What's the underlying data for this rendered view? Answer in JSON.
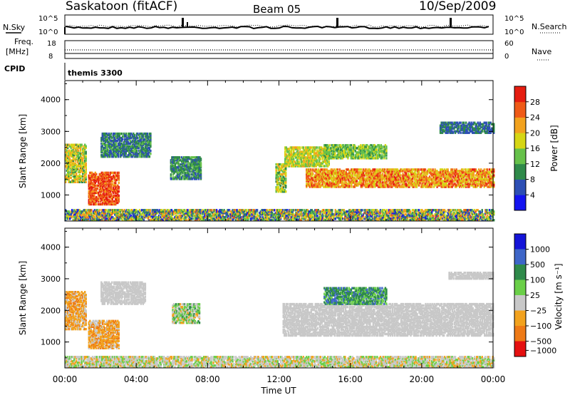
{
  "header": {
    "station": "Saskatoon (fitACF)",
    "beam": "Beam 05",
    "date": "10/Sep/2009"
  },
  "strips": {
    "nsky_label": "N.Sky",
    "nsky_ticks": [
      "10^5",
      "10^0"
    ],
    "nsearch_label": "N.Search",
    "nsearch_ticks": [
      "10^5",
      "10^0"
    ],
    "freq_label": "Freq.",
    "freq_unit": "[MHz]",
    "freq_ticks": [
      "18",
      "8"
    ],
    "nave_label": "Nave",
    "nave_ticks": [
      "60",
      "0"
    ],
    "cpid_label": "CPID",
    "cpid_value": "themis 3300"
  },
  "colors": {
    "power_scale": [
      "#1414f0",
      "#2d4fb4",
      "#2f8a4a",
      "#66c14a",
      "#d6d614",
      "#f2a21e",
      "#ef5a17",
      "#e51d10"
    ],
    "velocity_scale": [
      "#1414d8",
      "#3e66c8",
      "#2f8a4a",
      "#6acf48",
      "#c8c8c8",
      "#f2a21e",
      "#ee7a16",
      "#e51010"
    ]
  },
  "chart_data": [
    {
      "type": "heatmap",
      "name": "power",
      "ylabel": "Slant Range [km]",
      "ylim": [
        180,
        4600
      ],
      "yticks": [
        "1000",
        "2000",
        "3000",
        "4000"
      ],
      "xlim": [
        0,
        24
      ],
      "colorbar_label": "Power [dB]",
      "colorbar_ticks": [
        "4",
        "8",
        "12",
        "16",
        "20",
        "24",
        "28"
      ],
      "colorbar_range": [
        0,
        32
      ],
      "regions": [
        {
          "t0": 0.0,
          "t1": 1.2,
          "r0": 1400,
          "r1": 2600,
          "v0": 10,
          "v1": 24
        },
        {
          "t0": 1.3,
          "t1": 3.0,
          "r0": 700,
          "r1": 1700,
          "v0": 22,
          "v1": 31
        },
        {
          "t0": 2.0,
          "t1": 4.8,
          "r0": 2200,
          "r1": 2950,
          "v0": 4,
          "v1": 14
        },
        {
          "t0": 5.9,
          "t1": 7.6,
          "r0": 1500,
          "r1": 2200,
          "v0": 6,
          "v1": 14
        },
        {
          "t0": 11.8,
          "t1": 12.4,
          "r0": 1100,
          "r1": 2000,
          "v0": 10,
          "v1": 22
        },
        {
          "t0": 12.3,
          "t1": 14.8,
          "r0": 1900,
          "r1": 2500,
          "v0": 12,
          "v1": 22
        },
        {
          "t0": 13.5,
          "t1": 24.0,
          "r0": 1250,
          "r1": 1800,
          "v0": 16,
          "v1": 30
        },
        {
          "t0": 14.5,
          "t1": 18.0,
          "r0": 2150,
          "r1": 2600,
          "v0": 10,
          "v1": 18
        },
        {
          "t0": 21.0,
          "t1": 24.0,
          "r0": 2950,
          "r1": 3300,
          "v0": 4,
          "v1": 12
        },
        {
          "t0": 0.0,
          "t1": 24.0,
          "r0": 200,
          "r1": 550,
          "v0": 2,
          "v1": 26
        }
      ]
    },
    {
      "type": "heatmap",
      "name": "velocity",
      "ylabel": "Slant Range [km]",
      "ylim": [
        180,
        4600
      ],
      "yticks": [
        "1000",
        "2000",
        "3000",
        "4000"
      ],
      "xlabel": "Time UT",
      "xlim": [
        0,
        24
      ],
      "xticks": [
        "00:00",
        "04:00",
        "08:00",
        "12:00",
        "16:00",
        "20:00",
        "00:00"
      ],
      "colorbar_label": "Velocity [m s⁻¹]",
      "colorbar_ticks": [
        "1000",
        "500",
        "100",
        "25",
        "−25",
        "−100",
        "−500",
        "−1000"
      ],
      "regions": [
        {
          "t0": 0.0,
          "t1": 1.2,
          "r0": 1400,
          "r1": 2600,
          "v0": 4,
          "v1": 6
        },
        {
          "t0": 1.3,
          "t1": 3.0,
          "r0": 800,
          "r1": 1700,
          "v0": 4,
          "v1": 6
        },
        {
          "t0": 2.0,
          "t1": 4.5,
          "r0": 2200,
          "r1": 2900,
          "v0": 4,
          "v1": 4
        },
        {
          "t0": 6.0,
          "t1": 7.5,
          "r0": 1600,
          "r1": 2200,
          "v0": 2,
          "v1": 5
        },
        {
          "t0": 12.2,
          "t1": 24.0,
          "r0": 1200,
          "r1": 2200,
          "v0": 4,
          "v1": 4
        },
        {
          "t0": 14.5,
          "t1": 18.0,
          "r0": 2200,
          "r1": 2700,
          "v0": 1,
          "v1": 3
        },
        {
          "t0": 21.5,
          "t1": 24.0,
          "r0": 3000,
          "r1": 3200,
          "v0": 4,
          "v1": 4
        },
        {
          "t0": 0.0,
          "t1": 24.0,
          "r0": 200,
          "r1": 550,
          "v0": 3,
          "v1": 5
        }
      ]
    }
  ]
}
